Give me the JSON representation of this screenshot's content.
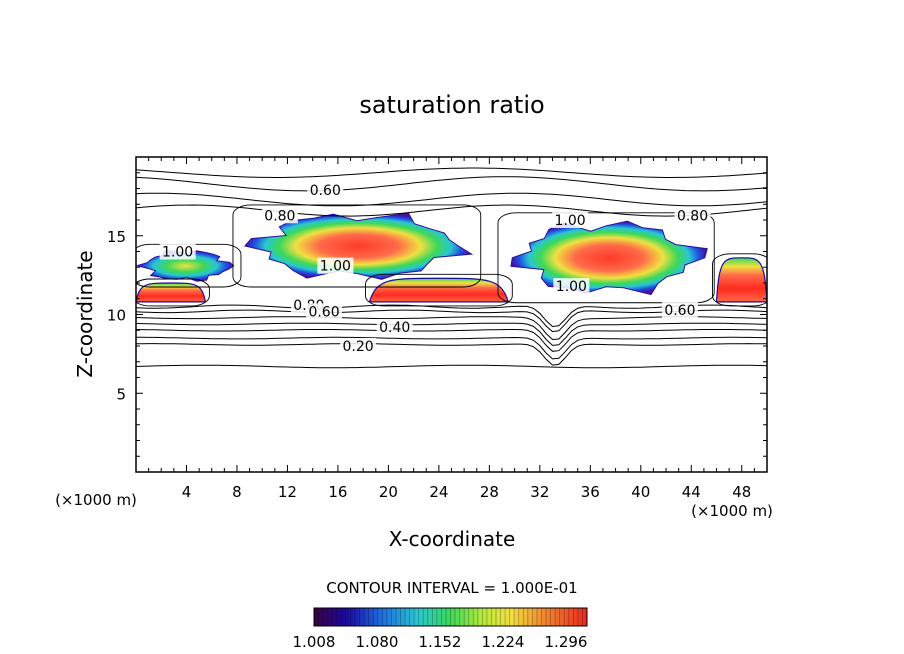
{
  "chart_data": {
    "type": "heatmap",
    "title": "saturation ratio",
    "xlabel": "X-coordinate",
    "ylabel": "Z-coordinate",
    "x_unit": "(×1000 m)",
    "z_unit": "(×1000 m)",
    "xlim": [
      0,
      50
    ],
    "ylim": [
      0,
      20
    ],
    "x_ticks": [
      4,
      8,
      12,
      16,
      20,
      24,
      28,
      32,
      36,
      40,
      44,
      48
    ],
    "y_ticks": [
      5,
      10,
      15
    ],
    "contour_interval_text": "CONTOUR INTERVAL = 1.000E-01",
    "colorbar": {
      "ticks": [
        "1.008",
        "1.080",
        "1.152",
        "1.224",
        "1.296"
      ],
      "range": [
        1.008,
        1.32
      ]
    },
    "contour_labels": [
      {
        "text": "0.60",
        "x": 15,
        "z": 17.9
      },
      {
        "text": "0.80",
        "x": 11.4,
        "z": 16.3
      },
      {
        "text": "0.80",
        "x": 44.1,
        "z": 16.3
      },
      {
        "text": "1.00",
        "x": 3.3,
        "z": 14.0
      },
      {
        "text": "1.00",
        "x": 15.8,
        "z": 13.1
      },
      {
        "text": "1.00",
        "x": 34.5,
        "z": 11.8
      },
      {
        "text": "1.00",
        "x": 34.4,
        "z": 16.0
      },
      {
        "text": "0.80",
        "x": 13.7,
        "z": 10.6
      },
      {
        "text": "0.60",
        "x": 14.9,
        "z": 10.2
      },
      {
        "text": "0.60",
        "x": 43.1,
        "z": 10.3
      },
      {
        "text": "0.40",
        "x": 20.5,
        "z": 9.2
      },
      {
        "text": "0.20",
        "x": 17.6,
        "z": 8.0
      }
    ],
    "supersaturated_regions": [
      {
        "x0": 0.0,
        "x1": 5.5,
        "z0": 10.8,
        "z1": 12.0,
        "peak": 1.32
      },
      {
        "x0": 0.0,
        "x1": 8.0,
        "z0": 12.0,
        "z1": 14.2,
        "peak": 1.22
      },
      {
        "x0": 8.0,
        "x1": 27.0,
        "z0": 12.0,
        "z1": 16.7,
        "peak": 1.3
      },
      {
        "x0": 18.5,
        "x1": 29.5,
        "z0": 10.8,
        "z1": 12.3,
        "peak": 1.32
      },
      {
        "x0": 29.0,
        "x1": 45.5,
        "z0": 11.0,
        "z1": 16.2,
        "peak": 1.3
      },
      {
        "x0": 46.0,
        "x1": 50.0,
        "z0": 10.8,
        "z1": 13.6,
        "peak": 1.32
      }
    ]
  }
}
